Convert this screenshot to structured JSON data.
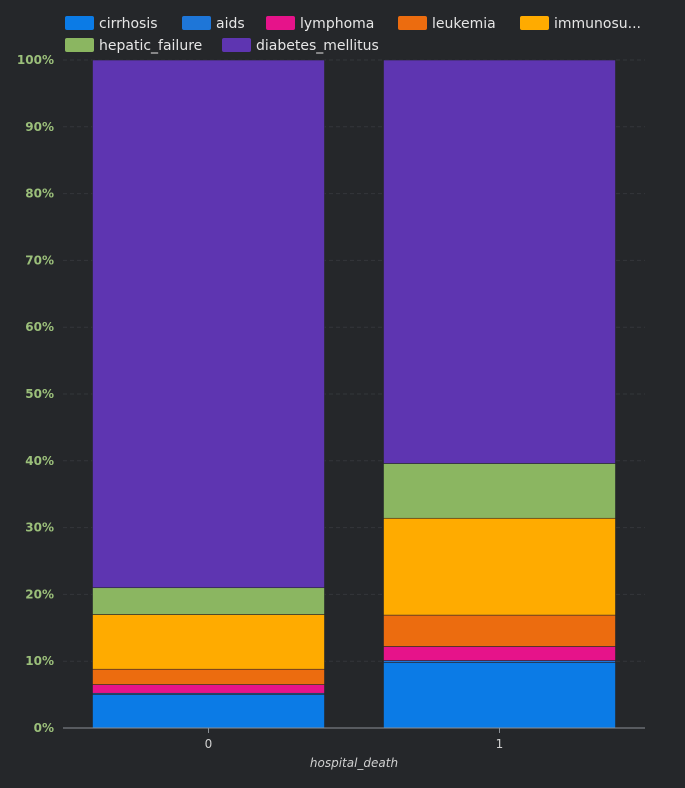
{
  "chart_data": {
    "type": "bar",
    "stacked": true,
    "normalized_percent": true,
    "xlabel": "hospital_death",
    "ylabel": "",
    "ylim": [
      0,
      100
    ],
    "yticks": [
      "0%",
      "10%",
      "20%",
      "30%",
      "40%",
      "50%",
      "60%",
      "70%",
      "80%",
      "90%",
      "100%"
    ],
    "categories": [
      "0",
      "1"
    ],
    "legend_position": "top",
    "grid": true,
    "series": [
      {
        "name": "cirrhosis",
        "color": "#0b7be6",
        "values": [
          5.0,
          9.8
        ]
      },
      {
        "name": "aids",
        "color": "#1e76d8",
        "values": [
          0.2,
          0.3
        ]
      },
      {
        "name": "lymphoma",
        "color": "#e6138a",
        "values": [
          1.3,
          2.1
        ]
      },
      {
        "name": "leukemia",
        "color": "#ec6c0f",
        "values": [
          2.3,
          4.7
        ]
      },
      {
        "name": "immunosu...",
        "color": "#ffab00",
        "values": [
          8.2,
          14.5
        ]
      },
      {
        "name": "hepatic_failure",
        "color": "#8bb661",
        "values": [
          4.0,
          8.2
        ]
      },
      {
        "name": "diabetes_mellitus",
        "color": "#5e35b1",
        "values": [
          79.0,
          60.4
        ]
      }
    ]
  }
}
